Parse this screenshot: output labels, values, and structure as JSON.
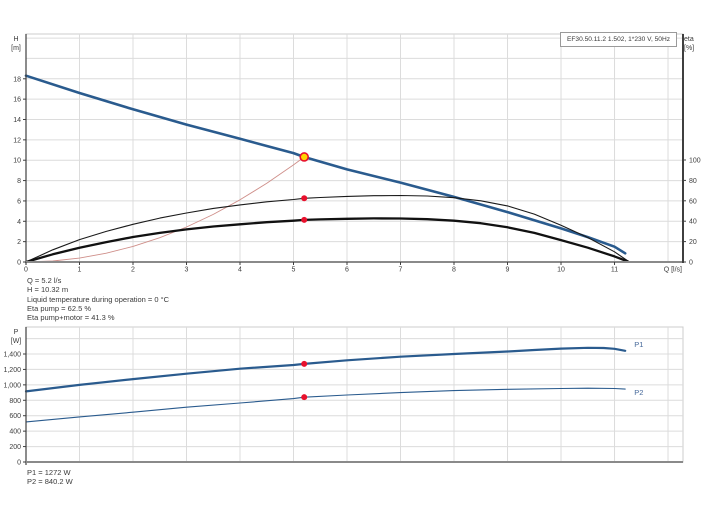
{
  "header_box": {
    "label": "EF30.50.11.2 1.502, 1*230 V, 50Hz"
  },
  "operating_point": {
    "lines": [
      "Q = 5.2 l/s",
      "H = 10.32 m",
      "Liquid temperature during operation = 0 °C",
      "Eta pump = 62.5 %",
      "Eta pump+motor = 41.3 %"
    ]
  },
  "power_readout": {
    "lines": [
      "P1 = 1272 W",
      "P2 = 840.2 W"
    ]
  },
  "colors": {
    "pump_curve_blue": "#2a5b8e",
    "system_curve_red": "#cf8f8a",
    "eta_curve_black": "#1a1a1a",
    "marker_red": "#e8112d",
    "marker_yellow": "#ffd400",
    "grid_gray": "#dcdcdc",
    "text_gray": "#3a3a3a"
  },
  "chart_data": [
    {
      "type": "line",
      "name": "head-efficiency-chart",
      "x_axis": {
        "label": "Q [l/s]",
        "min": 0,
        "max": 12.28,
        "ticks": [
          {
            "v": 0,
            "t": "0"
          },
          {
            "v": 1,
            "t": "1"
          },
          {
            "v": 2,
            "t": "2"
          },
          {
            "v": 3,
            "t": "3"
          },
          {
            "v": 4,
            "t": "4"
          },
          {
            "v": 5,
            "t": "5"
          },
          {
            "v": 6,
            "t": "6"
          },
          {
            "v": 7,
            "t": "7"
          },
          {
            "v": 8,
            "t": "8"
          },
          {
            "v": 9,
            "t": "9"
          },
          {
            "v": 10,
            "t": "10"
          },
          {
            "v": 11,
            "t": "11"
          }
        ],
        "grid": [
          1,
          2,
          3,
          4,
          5,
          6,
          7,
          8,
          9,
          10,
          11,
          12
        ]
      },
      "y_axis_left": {
        "label_lines": [
          "H",
          "[m]"
        ],
        "min": 0,
        "max": 22.4,
        "ticks": [
          {
            "v": 0,
            "t": "0"
          },
          {
            "v": 2,
            "t": "2"
          },
          {
            "v": 4,
            "t": "4"
          },
          {
            "v": 6,
            "t": "6"
          },
          {
            "v": 8,
            "t": "8"
          },
          {
            "v": 10,
            "t": "10"
          },
          {
            "v": 12,
            "t": "12"
          },
          {
            "v": 14,
            "t": "14"
          },
          {
            "v": 16,
            "t": "16"
          },
          {
            "v": 18,
            "t": "18"
          }
        ],
        "grid": [
          2,
          4,
          6,
          8,
          10,
          12,
          14,
          16,
          18,
          20,
          22
        ]
      },
      "y_axis_right": {
        "label_lines": [
          "eta",
          "[%]"
        ],
        "min": 0,
        "max": 100,
        "ticks": [
          {
            "v": 0,
            "t": "0"
          },
          {
            "v": 20,
            "t": "20"
          },
          {
            "v": 40,
            "t": "40"
          },
          {
            "v": 60,
            "t": "60"
          },
          {
            "v": 80,
            "t": "80"
          },
          {
            "v": 100,
            "t": "100"
          }
        ]
      },
      "series": [
        {
          "name": "pump-head-curve",
          "axis": "left",
          "color": "#2a5b8e",
          "width": 2.6,
          "interactable": true,
          "points": [
            [
              0,
              18.3
            ],
            [
              1,
              16.6
            ],
            [
              2,
              15.0
            ],
            [
              3,
              13.5
            ],
            [
              4,
              12.1
            ],
            [
              4.5,
              11.4
            ],
            [
              5,
              10.7
            ],
            [
              5.2,
              10.32
            ],
            [
              6,
              9.1
            ],
            [
              7,
              7.8
            ],
            [
              8,
              6.4
            ],
            [
              9,
              4.9
            ],
            [
              10,
              3.3
            ],
            [
              10.5,
              2.45
            ],
            [
              11,
              1.5
            ],
            [
              11.2,
              0.85
            ]
          ]
        },
        {
          "name": "system-curve",
          "axis": "left",
          "color": "#cf8f8a",
          "width": 0.9,
          "interactable": false,
          "points": [
            [
              0,
              0
            ],
            [
              0.5,
              0.1
            ],
            [
              1,
              0.38
            ],
            [
              1.5,
              0.86
            ],
            [
              2,
              1.53
            ],
            [
              2.5,
              2.39
            ],
            [
              3,
              3.44
            ],
            [
              3.5,
              4.68
            ],
            [
              4,
              6.11
            ],
            [
              4.5,
              7.73
            ],
            [
              5,
              9.54
            ],
            [
              5.2,
              10.32
            ]
          ]
        },
        {
          "name": "eta-pump-curve",
          "axis": "right",
          "color": "#1a1a1a",
          "width": 1.1,
          "interactable": false,
          "points": [
            [
              0,
              0
            ],
            [
              0.5,
              12
            ],
            [
              1,
              22
            ],
            [
              1.5,
              30
            ],
            [
              2,
              37
            ],
            [
              2.5,
              43
            ],
            [
              3,
              48
            ],
            [
              3.5,
              52.5
            ],
            [
              4,
              56
            ],
            [
              4.5,
              59
            ],
            [
              5,
              61.3
            ],
            [
              5.2,
              62.5
            ],
            [
              5.5,
              63.2
            ],
            [
              6,
              64.3
            ],
            [
              6.5,
              65
            ],
            [
              7,
              65.2
            ],
            [
              7.5,
              64.7
            ],
            [
              8,
              63
            ],
            [
              8.5,
              60
            ],
            [
              9,
              55
            ],
            [
              9.5,
              47
            ],
            [
              10,
              36
            ],
            [
              10.5,
              24
            ],
            [
              11,
              10
            ],
            [
              11.25,
              1
            ]
          ]
        },
        {
          "name": "eta-pump-motor-curve",
          "axis": "right",
          "color": "#111111",
          "width": 2.3,
          "interactable": false,
          "points": [
            [
              0,
              0
            ],
            [
              0.5,
              7.5
            ],
            [
              1,
              14
            ],
            [
              1.5,
              19.5
            ],
            [
              2,
              24.5
            ],
            [
              2.5,
              28.5
            ],
            [
              3,
              32
            ],
            [
              3.5,
              34.8
            ],
            [
              4,
              37
            ],
            [
              4.5,
              39
            ],
            [
              5,
              40.5
            ],
            [
              5.2,
              41.3
            ],
            [
              5.5,
              41.8
            ],
            [
              6,
              42.4
            ],
            [
              6.5,
              42.7
            ],
            [
              7,
              42.6
            ],
            [
              7.5,
              42
            ],
            [
              8,
              40.5
            ],
            [
              8.5,
              38
            ],
            [
              9,
              34
            ],
            [
              9.5,
              28.5
            ],
            [
              10,
              21.5
            ],
            [
              10.5,
              14
            ],
            [
              11,
              5.5
            ],
            [
              11.25,
              0.5
            ]
          ]
        }
      ],
      "markers": [
        {
          "name": "duty-point-marker",
          "axis": "left",
          "q": 5.2,
          "v": 10.32,
          "r": 4,
          "fill": "#ffd400",
          "stroke": "#e8112d",
          "stroke_width": 1.6,
          "interactable": true
        },
        {
          "name": "eta-pump-point",
          "axis": "right",
          "q": 5.2,
          "v": 62.5,
          "r": 3,
          "fill": "#e8112d",
          "interactable": false
        },
        {
          "name": "eta-pump-motor-point",
          "axis": "right",
          "q": 5.2,
          "v": 41.3,
          "r": 3,
          "fill": "#e8112d",
          "interactable": false
        }
      ]
    },
    {
      "type": "line",
      "name": "power-chart",
      "x_axis": {
        "label": "",
        "min": 0,
        "max": 12.28,
        "ticks": [],
        "grid": [
          1,
          2,
          3,
          4,
          5,
          6,
          7,
          8,
          9,
          10,
          11,
          12
        ]
      },
      "y_axis_left": {
        "label_lines": [
          "P",
          "[W]"
        ],
        "min": 0,
        "max": 1750,
        "ticks": [
          {
            "v": 0,
            "t": "0"
          },
          {
            "v": 200,
            "t": "200"
          },
          {
            "v": 400,
            "t": "400"
          },
          {
            "v": 600,
            "t": "600"
          },
          {
            "v": 800,
            "t": "800"
          },
          {
            "v": 1000,
            "t": "1,000"
          },
          {
            "v": 1200,
            "t": "1,200"
          },
          {
            "v": 1400,
            "t": "1,400"
          }
        ],
        "grid": [
          200,
          400,
          600,
          800,
          1000,
          1200,
          1400,
          1600
        ]
      },
      "series": [
        {
          "name": "p1-power-curve",
          "axis": "left",
          "color": "#2a5b8e",
          "width": 2.2,
          "interactable": true,
          "label": "P1",
          "label_offset": [
            9,
            -4
          ],
          "points": [
            [
              0,
              915
            ],
            [
              1,
              1000
            ],
            [
              2,
              1075
            ],
            [
              3,
              1145
            ],
            [
              4,
              1210
            ],
            [
              5,
              1258
            ],
            [
              5.2,
              1272
            ],
            [
              6,
              1318
            ],
            [
              7,
              1365
            ],
            [
              8,
              1400
            ],
            [
              9,
              1432
            ],
            [
              9.5,
              1452
            ],
            [
              10,
              1470
            ],
            [
              10.5,
              1480
            ],
            [
              10.8,
              1478
            ],
            [
              11,
              1468
            ],
            [
              11.2,
              1442
            ]
          ]
        },
        {
          "name": "p2-power-curve",
          "axis": "left",
          "color": "#2a5b8e",
          "width": 1.1,
          "interactable": true,
          "label": "P2",
          "label_offset": [
            9,
            6
          ],
          "points": [
            [
              0,
              520
            ],
            [
              1,
              585
            ],
            [
              2,
              645
            ],
            [
              3,
              710
            ],
            [
              4,
              765
            ],
            [
              5,
              822
            ],
            [
              5.2,
              840
            ],
            [
              6,
              868
            ],
            [
              7,
              900
            ],
            [
              8,
              925
            ],
            [
              9,
              942
            ],
            [
              10,
              953
            ],
            [
              10.5,
              957
            ],
            [
              11,
              953
            ],
            [
              11.2,
              945
            ]
          ]
        }
      ],
      "markers": [
        {
          "name": "p1-point",
          "axis": "left",
          "q": 5.2,
          "v": 1272,
          "r": 3,
          "fill": "#e8112d",
          "interactable": false
        },
        {
          "name": "p2-point",
          "axis": "left",
          "q": 5.2,
          "v": 840.2,
          "r": 3,
          "fill": "#e8112d",
          "interactable": false
        }
      ]
    }
  ]
}
